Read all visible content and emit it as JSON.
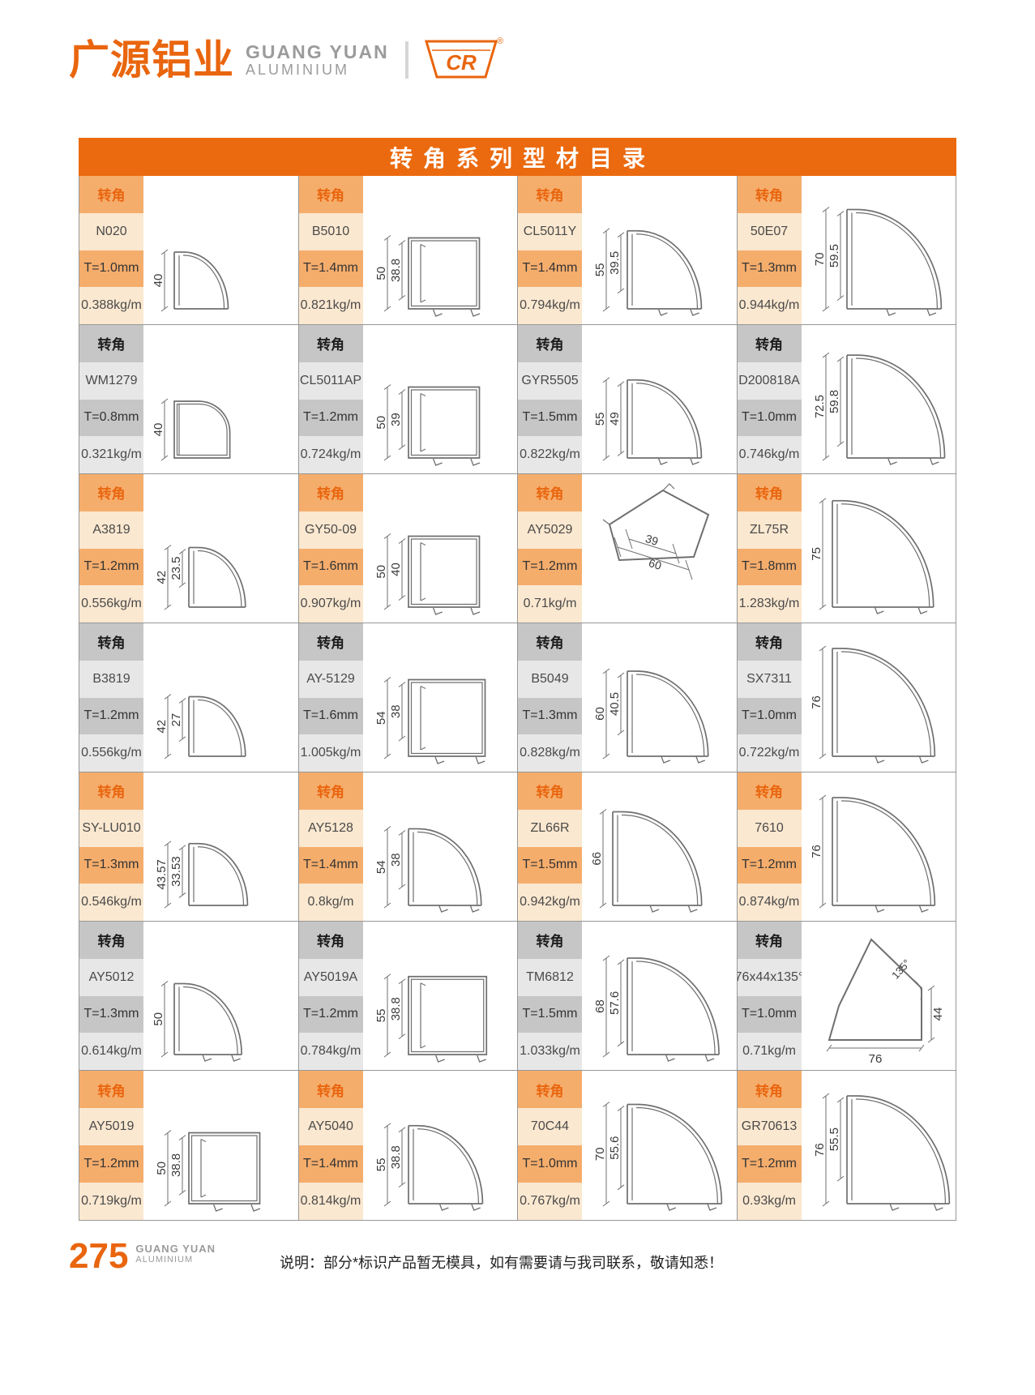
{
  "header": {
    "company_cn": "广源铝业",
    "company_en": "GUANG YUAN",
    "company_en_sub": "ALUMINIUM",
    "logo_letters": "CR",
    "registered_mark": "®"
  },
  "title": "转角系列型材目录",
  "colors": {
    "accent_orange": "#E9650E",
    "title_bar": "#EB6A0F",
    "orange_cell_dark": "#F5AD6C",
    "orange_cell_light": "#FBE8D0",
    "gray_cell_dark": "#C6C6C6",
    "gray_cell_light": "#E7E7E7",
    "drawing_stroke": "#6f6f6f"
  },
  "catalog": {
    "category_label": "转角",
    "rows": [
      {
        "theme": "orange",
        "products": [
          {
            "model": "N020",
            "thickness": "T=1.0mm",
            "weight": "0.388kg/m",
            "drawing": {
              "shape": "quarter",
              "dims": [
                "40"
              ],
              "outer": 40
            }
          },
          {
            "model": "B5010",
            "thickness": "T=1.4mm",
            "weight": "0.821kg/m",
            "drawing": {
              "shape": "square",
              "dims": [
                "50",
                "38.8"
              ],
              "outer": 50,
              "inner": 38.8
            }
          },
          {
            "model": "CL5011Y",
            "thickness": "T=1.4mm",
            "weight": "0.794kg/m",
            "drawing": {
              "shape": "quarter",
              "dims": [
                "55",
                "39.5"
              ],
              "outer": 55,
              "inner": 39.5
            }
          },
          {
            "model": "50E07",
            "thickness": "T=1.3mm",
            "weight": "0.944kg/m",
            "drawing": {
              "shape": "quarter",
              "dims": [
                "70",
                "59.5"
              ],
              "outer": 70,
              "inner": 59.5
            }
          }
        ]
      },
      {
        "theme": "gray",
        "products": [
          {
            "model": "WM1279",
            "thickness": "T=0.8mm",
            "weight": "0.321kg/m",
            "drawing": {
              "shape": "rsquare",
              "dims": [
                "40"
              ],
              "outer": 40
            }
          },
          {
            "model": "CL5011AP",
            "thickness": "T=1.2mm",
            "weight": "0.724kg/m",
            "drawing": {
              "shape": "square",
              "dims": [
                "50",
                "39"
              ],
              "outer": 50,
              "inner": 39
            }
          },
          {
            "model": "GYR5505",
            "thickness": "T=1.5mm",
            "weight": "0.822kg/m",
            "drawing": {
              "shape": "quarter",
              "dims": [
                "55",
                "49"
              ],
              "outer": 55,
              "inner": 49
            }
          },
          {
            "model": "D200818A",
            "thickness": "T=1.0mm",
            "weight": "0.746kg/m",
            "drawing": {
              "shape": "quarter",
              "dims": [
                "72.5",
                "59.8"
              ],
              "outer": 72.5,
              "inner": 59.8
            }
          }
        ]
      },
      {
        "theme": "orange",
        "products": [
          {
            "model": "A3819",
            "thickness": "T=1.2mm",
            "weight": "0.556kg/m",
            "drawing": {
              "shape": "quarter",
              "dims": [
                "42",
                "23.5"
              ],
              "outer": 42,
              "inner": 23.5
            }
          },
          {
            "model": "GY50-09",
            "thickness": "T=1.6mm",
            "weight": "0.907kg/m",
            "drawing": {
              "shape": "square",
              "dims": [
                "50",
                "40"
              ],
              "outer": 50,
              "inner": 40
            }
          },
          {
            "model": "AY5029",
            "thickness": "T=1.2mm",
            "weight": "0.71kg/m",
            "drawing": {
              "shape": "pent-rot",
              "dims": [
                "39",
                "60"
              ],
              "outer": 60,
              "inner": 39
            }
          },
          {
            "model": "ZL75R",
            "thickness": "T=1.8mm",
            "weight": "1.283kg/m",
            "drawing": {
              "shape": "quarter",
              "dims": [
                "75"
              ],
              "outer": 75
            }
          }
        ]
      },
      {
        "theme": "gray",
        "products": [
          {
            "model": "B3819",
            "thickness": "T=1.2mm",
            "weight": "0.556kg/m",
            "drawing": {
              "shape": "quarter",
              "dims": [
                "42",
                "27"
              ],
              "outer": 42,
              "inner": 27
            }
          },
          {
            "model": "AY-5129",
            "thickness": "T=1.6mm",
            "weight": "1.005kg/m",
            "drawing": {
              "shape": "square",
              "dims": [
                "54",
                "38"
              ],
              "outer": 54,
              "inner": 38
            }
          },
          {
            "model": "B5049",
            "thickness": "T=1.3mm",
            "weight": "0.828kg/m",
            "drawing": {
              "shape": "quarter",
              "dims": [
                "60",
                "40.5"
              ],
              "outer": 60,
              "inner": 40.5
            }
          },
          {
            "model": "SX7311",
            "thickness": "T=1.0mm",
            "weight": "0.722kg/m",
            "drawing": {
              "shape": "quarter",
              "dims": [
                "76"
              ],
              "outer": 76
            }
          }
        ]
      },
      {
        "theme": "orange",
        "products": [
          {
            "model": "SY-LU010",
            "thickness": "T=1.3mm",
            "weight": "0.546kg/m",
            "drawing": {
              "shape": "quarter",
              "dims": [
                "43.57",
                "33.53"
              ],
              "outer": 43.57,
              "inner": 33.53
            }
          },
          {
            "model": "AY5128",
            "thickness": "T=1.4mm",
            "weight": "0.8kg/m",
            "drawing": {
              "shape": "quarter",
              "dims": [
                "54",
                "38"
              ],
              "outer": 54,
              "inner": 38
            }
          },
          {
            "model": "ZL66R",
            "thickness": "T=1.5mm",
            "weight": "0.942kg/m",
            "drawing": {
              "shape": "quarter",
              "dims": [
                "66"
              ],
              "outer": 66
            }
          },
          {
            "model": "7610",
            "thickness": "T=1.2mm",
            "weight": "0.874kg/m",
            "drawing": {
              "shape": "quarter",
              "dims": [
                "76"
              ],
              "outer": 76
            }
          }
        ]
      },
      {
        "theme": "gray",
        "products": [
          {
            "model": "AY5012",
            "thickness": "T=1.3mm",
            "weight": "0.614kg/m",
            "drawing": {
              "shape": "quarter",
              "dims": [
                "50"
              ],
              "outer": 50
            }
          },
          {
            "model": "AY5019A",
            "thickness": "T=1.2mm",
            "weight": "0.784kg/m",
            "drawing": {
              "shape": "square",
              "dims": [
                "55",
                "38.8"
              ],
              "outer": 55,
              "inner": 38.8
            }
          },
          {
            "model": "TM6812",
            "thickness": "T=1.5mm",
            "weight": "1.033kg/m",
            "drawing": {
              "shape": "quarter",
              "dims": [
                "68",
                "57.6"
              ],
              "outer": 68,
              "inner": 57.6
            }
          },
          {
            "model": "76x44x135°",
            "thickness": "T=1.0mm",
            "weight": "0.71kg/m",
            "drawing": {
              "shape": "pent",
              "dims": [
                "135°",
                "44",
                "76"
              ],
              "outer": 76,
              "inner": 44
            }
          }
        ]
      },
      {
        "theme": "orange",
        "products": [
          {
            "model": "AY5019",
            "thickness": "T=1.2mm",
            "weight": "0.719kg/m",
            "drawing": {
              "shape": "square",
              "dims": [
                "50",
                "38.8"
              ],
              "outer": 50,
              "inner": 38.8
            }
          },
          {
            "model": "AY5040",
            "thickness": "T=1.4mm",
            "weight": "0.814kg/m",
            "drawing": {
              "shape": "quarter",
              "dims": [
                "55",
                "38.8"
              ],
              "outer": 55,
              "inner": 38.8
            }
          },
          {
            "model": "70C44",
            "thickness": "T=1.0mm",
            "weight": "0.767kg/m",
            "drawing": {
              "shape": "quarter",
              "dims": [
                "70",
                "55.6"
              ],
              "outer": 70,
              "inner": 55.6
            }
          },
          {
            "model": "GR70613",
            "thickness": "T=1.2mm",
            "weight": "0.93kg/m",
            "drawing": {
              "shape": "quarter",
              "dims": [
                "76",
                "55.5"
              ],
              "outer": 76,
              "inner": 55.5
            }
          }
        ]
      }
    ]
  },
  "footer": {
    "page_number": "275",
    "brand": "GUANG YUAN",
    "brand_sub": "ALUMINIUM",
    "note": "说明：部分*标识产品暂无模具，如有需要请与我司联系，敬请知悉！"
  }
}
